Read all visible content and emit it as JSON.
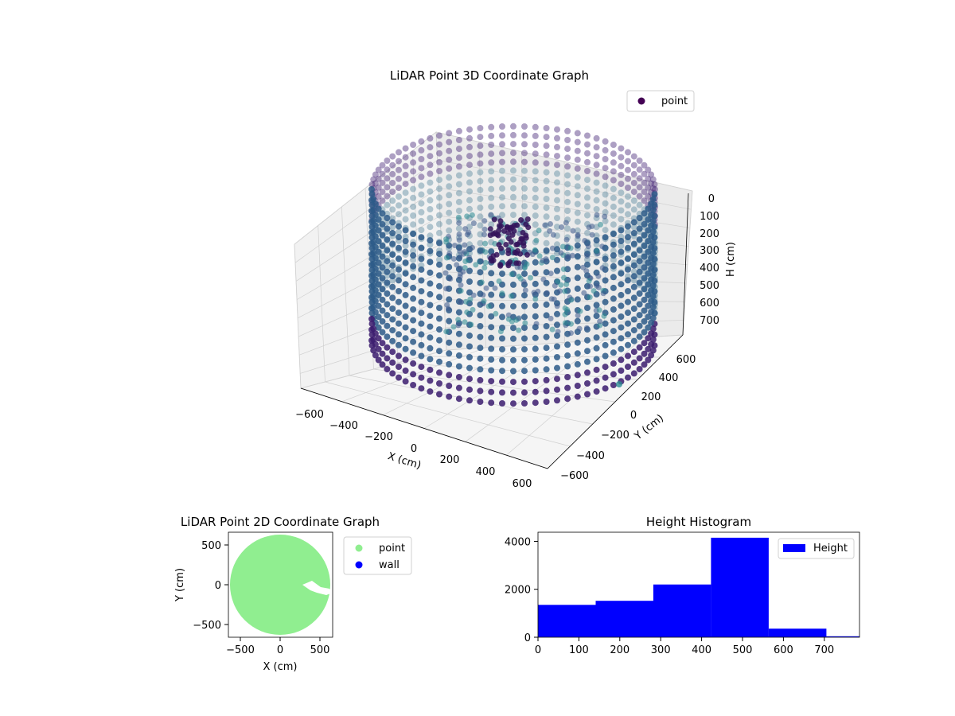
{
  "colors": {
    "wall_ring": "#3b1c6e",
    "inner_points": "#2a8a92",
    "legend_3d_marker": "#440154",
    "point_2d": "#90ee90",
    "wall_2d": "#0000ff",
    "hist_bar": "#0000ff",
    "pane": "#f2f2f2",
    "grid": "#d0d0d0"
  },
  "chart_data": [
    {
      "type": "scatter",
      "title": "LiDAR Point 3D Coordinate Graph",
      "xlabel": "X (cm)",
      "ylabel": "Y (cm)",
      "zlabel": "H (cm)",
      "legend": [
        "point"
      ],
      "legend_position": "top-right",
      "xticks": [
        "−600",
        "−400",
        "−200",
        "0",
        "200",
        "400",
        "600"
      ],
      "yticks": [
        "−600",
        "−400",
        "−200",
        "0",
        "200",
        "400",
        "600"
      ],
      "zticks": [
        "0",
        "100",
        "200",
        "300",
        "400",
        "500",
        "600",
        "700"
      ],
      "xlim": [
        -650,
        650
      ],
      "ylim": [
        -650,
        650
      ],
      "zlim": [
        0,
        780
      ],
      "z_axis_inverted": true,
      "grid": true,
      "wall_radius": 580,
      "wall_height_range": [
        0,
        780
      ]
    },
    {
      "type": "scatter",
      "title": "LiDAR Point 2D Coordinate Graph",
      "xlabel": "X (cm)",
      "ylabel": "Y (cm)",
      "xticks": [
        "−500",
        "0",
        "500"
      ],
      "yticks": [
        "500",
        "0",
        "−500"
      ],
      "xlim": [
        -650,
        650
      ],
      "ylim": [
        -650,
        650
      ],
      "legend": [
        "point",
        "wall"
      ],
      "legend_position": "outside right",
      "disk_radius": 650
    },
    {
      "type": "bar",
      "title": "Height Histogram",
      "series": [
        {
          "name": "Height",
          "values": [
            1350,
            1520,
            2200,
            4150,
            360,
            40
          ]
        }
      ],
      "bin_edges": [
        0,
        141,
        282,
        423,
        564,
        705,
        786
      ],
      "xticks": [
        "0",
        "100",
        "200",
        "300",
        "400",
        "500",
        "600",
        "700"
      ],
      "yticks": [
        "0",
        "2000",
        "4000"
      ],
      "xlim": [
        0,
        786
      ],
      "ylim": [
        0,
        4380
      ],
      "legend": [
        "Height"
      ],
      "legend_position": "top-right"
    }
  ]
}
